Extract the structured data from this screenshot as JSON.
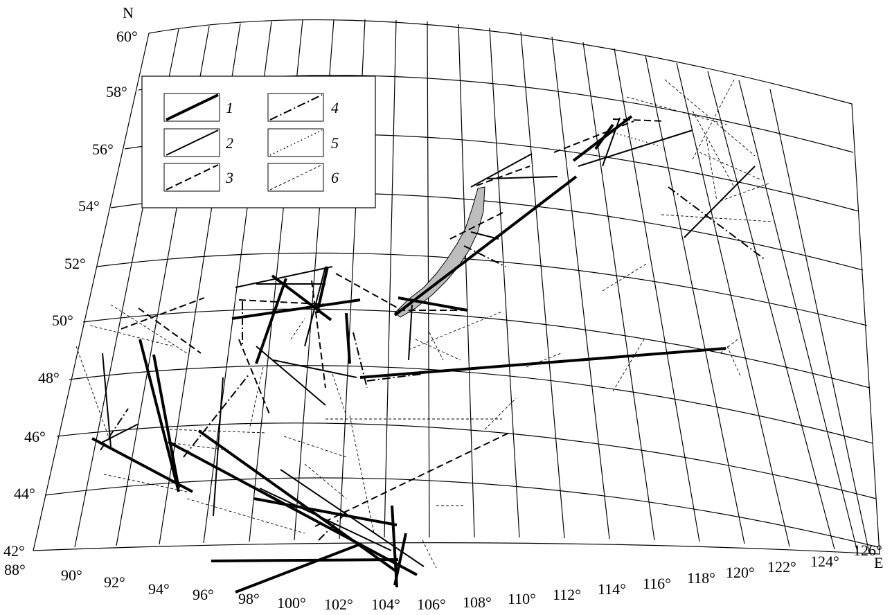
{
  "map": {
    "north_label": "N",
    "east_label": "E",
    "latitude_labels": [
      "60°",
      "58°",
      "56°",
      "54°",
      "52°",
      "50°",
      "48°",
      "46°",
      "44°",
      "42°"
    ],
    "longitude_labels": [
      "88°",
      "90°",
      "92°",
      "94°",
      "96°",
      "98°",
      "100°",
      "102°",
      "104°",
      "106°",
      "108°",
      "110°",
      "112°",
      "114°",
      "116°",
      "118°",
      "120°",
      "122°",
      "124°",
      "126°"
    ],
    "lake_name": "",
    "colors": {
      "ink": "#000000",
      "lake_fill": "#bdbdbd",
      "background": "#ffffff"
    }
  },
  "legend": {
    "items": [
      {
        "label": "1",
        "style": "heavy-solid"
      },
      {
        "label": "2",
        "style": "solid"
      },
      {
        "label": "3",
        "style": "dashed"
      },
      {
        "label": "4",
        "style": "dash-dot"
      },
      {
        "label": "5",
        "style": "dotted"
      },
      {
        "label": "6",
        "style": "thin-dashed"
      }
    ]
  }
}
